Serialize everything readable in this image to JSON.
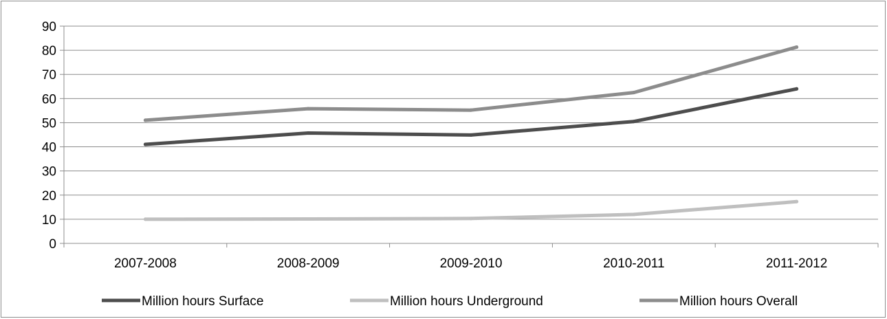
{
  "chart_data": {
    "type": "line",
    "title": "",
    "xlabel": "",
    "ylabel": "",
    "categories": [
      "2007-2008",
      "2008-2009",
      "2009-2010",
      "2010-2011",
      "2011-2012"
    ],
    "ylim": [
      0,
      90
    ],
    "yticks": [
      0,
      10,
      20,
      30,
      40,
      50,
      60,
      70,
      80,
      90
    ],
    "grid": true,
    "legend_position": "bottom",
    "series": [
      {
        "name": "Million hours Surface",
        "values": [
          41,
          45.7,
          44.9,
          50.5,
          64
        ],
        "color": "#4d4d4d"
      },
      {
        "name": "Million hours Underground",
        "values": [
          10,
          10.1,
          10.3,
          12,
          17.3
        ],
        "color": "#bfbfbf"
      },
      {
        "name": "Million hours Overall",
        "values": [
          51,
          55.8,
          55.2,
          62.5,
          81.3
        ],
        "color": "#8c8c8c"
      }
    ]
  }
}
